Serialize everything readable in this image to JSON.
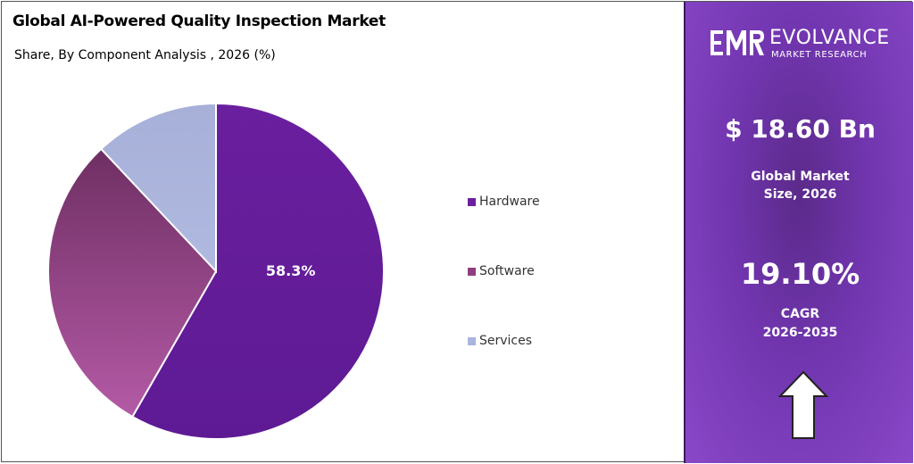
{
  "chart_data": {
    "type": "pie",
    "title": "Global AI-Powered Quality Inspection Market",
    "subtitle": "Share, By Component Analysis , 2026 (%)",
    "categories": [
      "Hardware",
      "Software",
      "Services"
    ],
    "values": [
      58.3,
      29.7,
      12.0
    ],
    "data_labels": [
      "58.3%",
      "",
      ""
    ],
    "colors": [
      "#6a1fa0",
      "#8e3f7e",
      "#aab4dd"
    ],
    "legend_position": "right"
  },
  "panel": {
    "brand_name": "EVOLVANCE",
    "brand_sub": "MARKET RESEARCH",
    "logo_letters": "EMR",
    "market_value": "$ 18.60 Bn",
    "market_label_line1": "Global Market",
    "market_label_line2": "Size, 2026",
    "cagr_value": "19.10%",
    "cagr_label_line1": "CAGR",
    "cagr_label_line2": "2026-2035",
    "arrow_icon": "up-arrow-icon"
  }
}
